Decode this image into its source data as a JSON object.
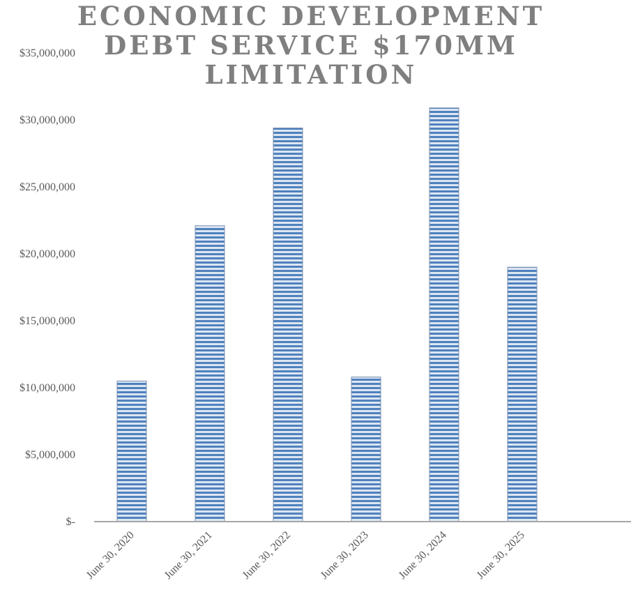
{
  "chart_data": {
    "type": "bar",
    "title_lines": [
      "ECONOMIC DEVELOPMENT",
      "DEBT SERVICE $170MM",
      "LIMITATION"
    ],
    "categories": [
      "June 30, 2020",
      "June 30, 2021",
      "June 30, 2022",
      "June 30, 2023",
      "June 30, 2024",
      "June 30, 2025"
    ],
    "values": [
      10500000,
      22100000,
      29400000,
      10800000,
      30900000,
      19000000
    ],
    "ylim": [
      0,
      35000000
    ],
    "y_ticks": [
      0,
      5000000,
      10000000,
      15000000,
      20000000,
      25000000,
      30000000,
      35000000
    ],
    "y_tick_labels": [
      "$-",
      "$5,000,000",
      "$10,000,000",
      "$15,000,000",
      "$20,000,000",
      "$25,000,000",
      "$30,000,000",
      "$35,000,000"
    ],
    "grid": false,
    "legend": "none",
    "bar_color": "#4f81bd",
    "bar_stripe_color": "#dce6f2"
  }
}
